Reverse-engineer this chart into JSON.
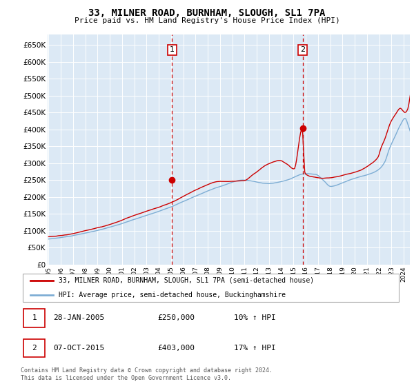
{
  "title": "33, MILNER ROAD, BURNHAM, SLOUGH, SL1 7PA",
  "subtitle": "Price paid vs. HM Land Registry's House Price Index (HPI)",
  "background_color": "#dce9f5",
  "plot_bg_color": "#dce9f5",
  "red_line_label": "33, MILNER ROAD, BURNHAM, SLOUGH, SL1 7PA (semi-detached house)",
  "blue_line_label": "HPI: Average price, semi-detached house, Buckinghamshire",
  "annotation1_label": "1",
  "annotation1_date": "28-JAN-2005",
  "annotation1_price": "£250,000",
  "annotation1_hpi": "10% ↑ HPI",
  "annotation2_label": "2",
  "annotation2_date": "07-OCT-2015",
  "annotation2_price": "£403,000",
  "annotation2_hpi": "17% ↑ HPI",
  "footer": "Contains HM Land Registry data © Crown copyright and database right 2024.\nThis data is licensed under the Open Government Licence v3.0.",
  "ylim": [
    0,
    680000
  ],
  "yticks": [
    0,
    50000,
    100000,
    150000,
    200000,
    250000,
    300000,
    350000,
    400000,
    450000,
    500000,
    550000,
    600000,
    650000
  ],
  "sale1_year": 2005.08,
  "sale1_price": 250000,
  "sale2_year": 2015.75,
  "sale2_price": 403000,
  "red_color": "#cc0000",
  "blue_color": "#7dadd4"
}
